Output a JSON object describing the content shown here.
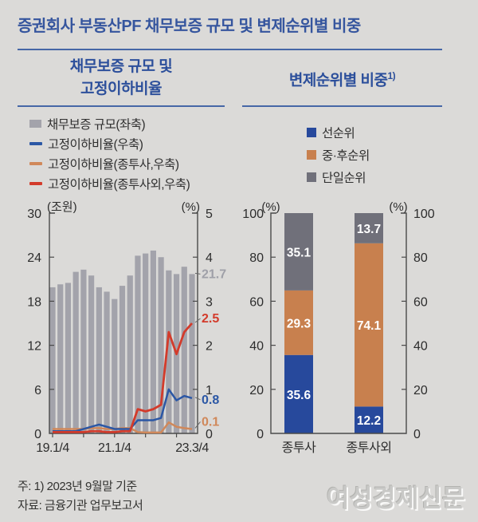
{
  "page": {
    "title": "증권회사 부동산PF 채무보증 규모 및 변제순위별 비중",
    "note": "주: 1) 2023년 9월말 기준",
    "source": "자료: 금융기관 업무보고서",
    "watermark": "여성경제신문"
  },
  "panels": {
    "left": {
      "header_line1": "채무보증 규모 및",
      "header_line2": "고정이하비율"
    },
    "right": {
      "header": "변제순위별 비중",
      "header_sup": "1)"
    }
  },
  "colors": {
    "background": "#dbdad8",
    "title_blue": "#35559e",
    "header_blue": "#2c4f9b",
    "rule_blue": "#4667a6",
    "axis": "#4a4a4a",
    "bar_gray": "#a3a3ab",
    "line_blue": "#2b57a5",
    "line_orange": "#d0885a",
    "line_red": "#d33b2b",
    "stack_blue": "#27499c",
    "stack_orange": "#c8804e",
    "stack_gray": "#70707a",
    "annotation_gray": "#9fa0a8",
    "watermark_gray": "#c9c9c7"
  },
  "chart_data": [
    {
      "type": "bar",
      "title": "채무보증 규모 및 고정이하비율",
      "categories": [
        "19.1/4",
        "19.2/4",
        "19.3/4",
        "19.4/4",
        "20.1/4",
        "20.2/4",
        "20.3/4",
        "20.4/4",
        "21.1/4",
        "21.2/4",
        "21.3/4",
        "21.4/4",
        "22.1/4",
        "22.2/4",
        "22.3/4",
        "22.4/4",
        "23.1/4",
        "23.2/4",
        "23.3/4"
      ],
      "x_tick_labels": [
        {
          "index": 0,
          "label": "19.1/4"
        },
        {
          "index": 8,
          "label": "21.1/4"
        },
        {
          "index": 18,
          "label": "23.3/4"
        }
      ],
      "x_minor_tick_indices": [
        0,
        4,
        8,
        12,
        16
      ],
      "bars": {
        "name": "채무보증 규모(좌축)",
        "axis": "left",
        "color": "#a3a3ab",
        "values": [
          19.9,
          20.3,
          20.5,
          22.0,
          22.3,
          21.5,
          19.9,
          19.3,
          18.3,
          20.1,
          21.5,
          24.2,
          24.5,
          24.9,
          24.0,
          22.2,
          21.7,
          22.7,
          21.7
        ]
      },
      "series": [
        {
          "id": "jongtusa",
          "name": "고정이하비율(종투사,우축)",
          "axis": "right",
          "color": "#d0885a",
          "width": 2.5,
          "values": [
            0.1,
            0.1,
            0.1,
            0.1,
            0.1,
            0.12,
            0.12,
            0.1,
            0.1,
            0.12,
            0.12,
            0.03,
            0.02,
            0.02,
            0.02,
            0.25,
            0.15,
            0.12,
            0.1
          ]
        },
        {
          "id": "total",
          "name": "고정이하비율(우축)",
          "axis": "right",
          "color": "#2b57a5",
          "width": 2.5,
          "values": [
            0.05,
            0.05,
            0.05,
            0.05,
            0.1,
            0.15,
            0.2,
            0.15,
            0.1,
            0.1,
            0.1,
            0.3,
            0.3,
            0.3,
            0.35,
            1.0,
            0.75,
            0.85,
            0.8
          ]
        },
        {
          "id": "jongtusa-oe",
          "name": "고정이하비율(종투사외,우축)",
          "axis": "right",
          "color": "#d33b2b",
          "width": 2.8,
          "values": [
            0.03,
            0.03,
            0.03,
            0.03,
            0.03,
            0.05,
            0.05,
            0.03,
            0.03,
            0.05,
            0.05,
            0.55,
            0.5,
            0.55,
            0.65,
            2.3,
            1.8,
            2.3,
            2.5
          ]
        }
      ],
      "left_axis": {
        "label": "(조원)",
        "range": [
          0,
          30
        ],
        "ticks": [
          30,
          24,
          18,
          12,
          6,
          0
        ]
      },
      "right_axis": {
        "label": "(%)",
        "range": [
          0,
          5
        ],
        "ticks": [
          5,
          4,
          3,
          2,
          1,
          0
        ]
      },
      "annotations": [
        {
          "text": "21.7",
          "value": 21.7,
          "axis": "left",
          "color": "#9fa0a8",
          "dy": 0
        },
        {
          "text": "2.5",
          "value": 2.5,
          "axis": "right",
          "color": "#d33b2b",
          "dy": -6
        },
        {
          "text": "0.8",
          "value": 0.8,
          "axis": "right",
          "color": "#2b57a5",
          "dy": 2
        },
        {
          "text": "0.1",
          "value": 0.1,
          "axis": "right",
          "color": "#d0885a",
          "dy": -9
        }
      ],
      "legend_position": "top",
      "grid": false
    },
    {
      "type": "stacked-bar",
      "title": "변제순위별 비중",
      "categories": [
        "종투사",
        "종투사외"
      ],
      "series": [
        {
          "name": "선순위",
          "color": "#27499c",
          "values": [
            35.6,
            12.2
          ]
        },
        {
          "name": "중·후순위",
          "color": "#c8804e",
          "values": [
            29.3,
            74.1
          ]
        },
        {
          "name": "단일순위",
          "color": "#70707a",
          "values": [
            35.1,
            13.7
          ]
        }
      ],
      "left_axis": {
        "label": "(%)",
        "range": [
          0,
          100
        ],
        "ticks": [
          100,
          80,
          60,
          40,
          20,
          0
        ]
      },
      "right_axis": {
        "label": "(%)",
        "range": [
          0,
          100
        ],
        "ticks": [
          100,
          80,
          60,
          40,
          20,
          0
        ]
      },
      "legend_position": "top",
      "grid": false
    }
  ]
}
